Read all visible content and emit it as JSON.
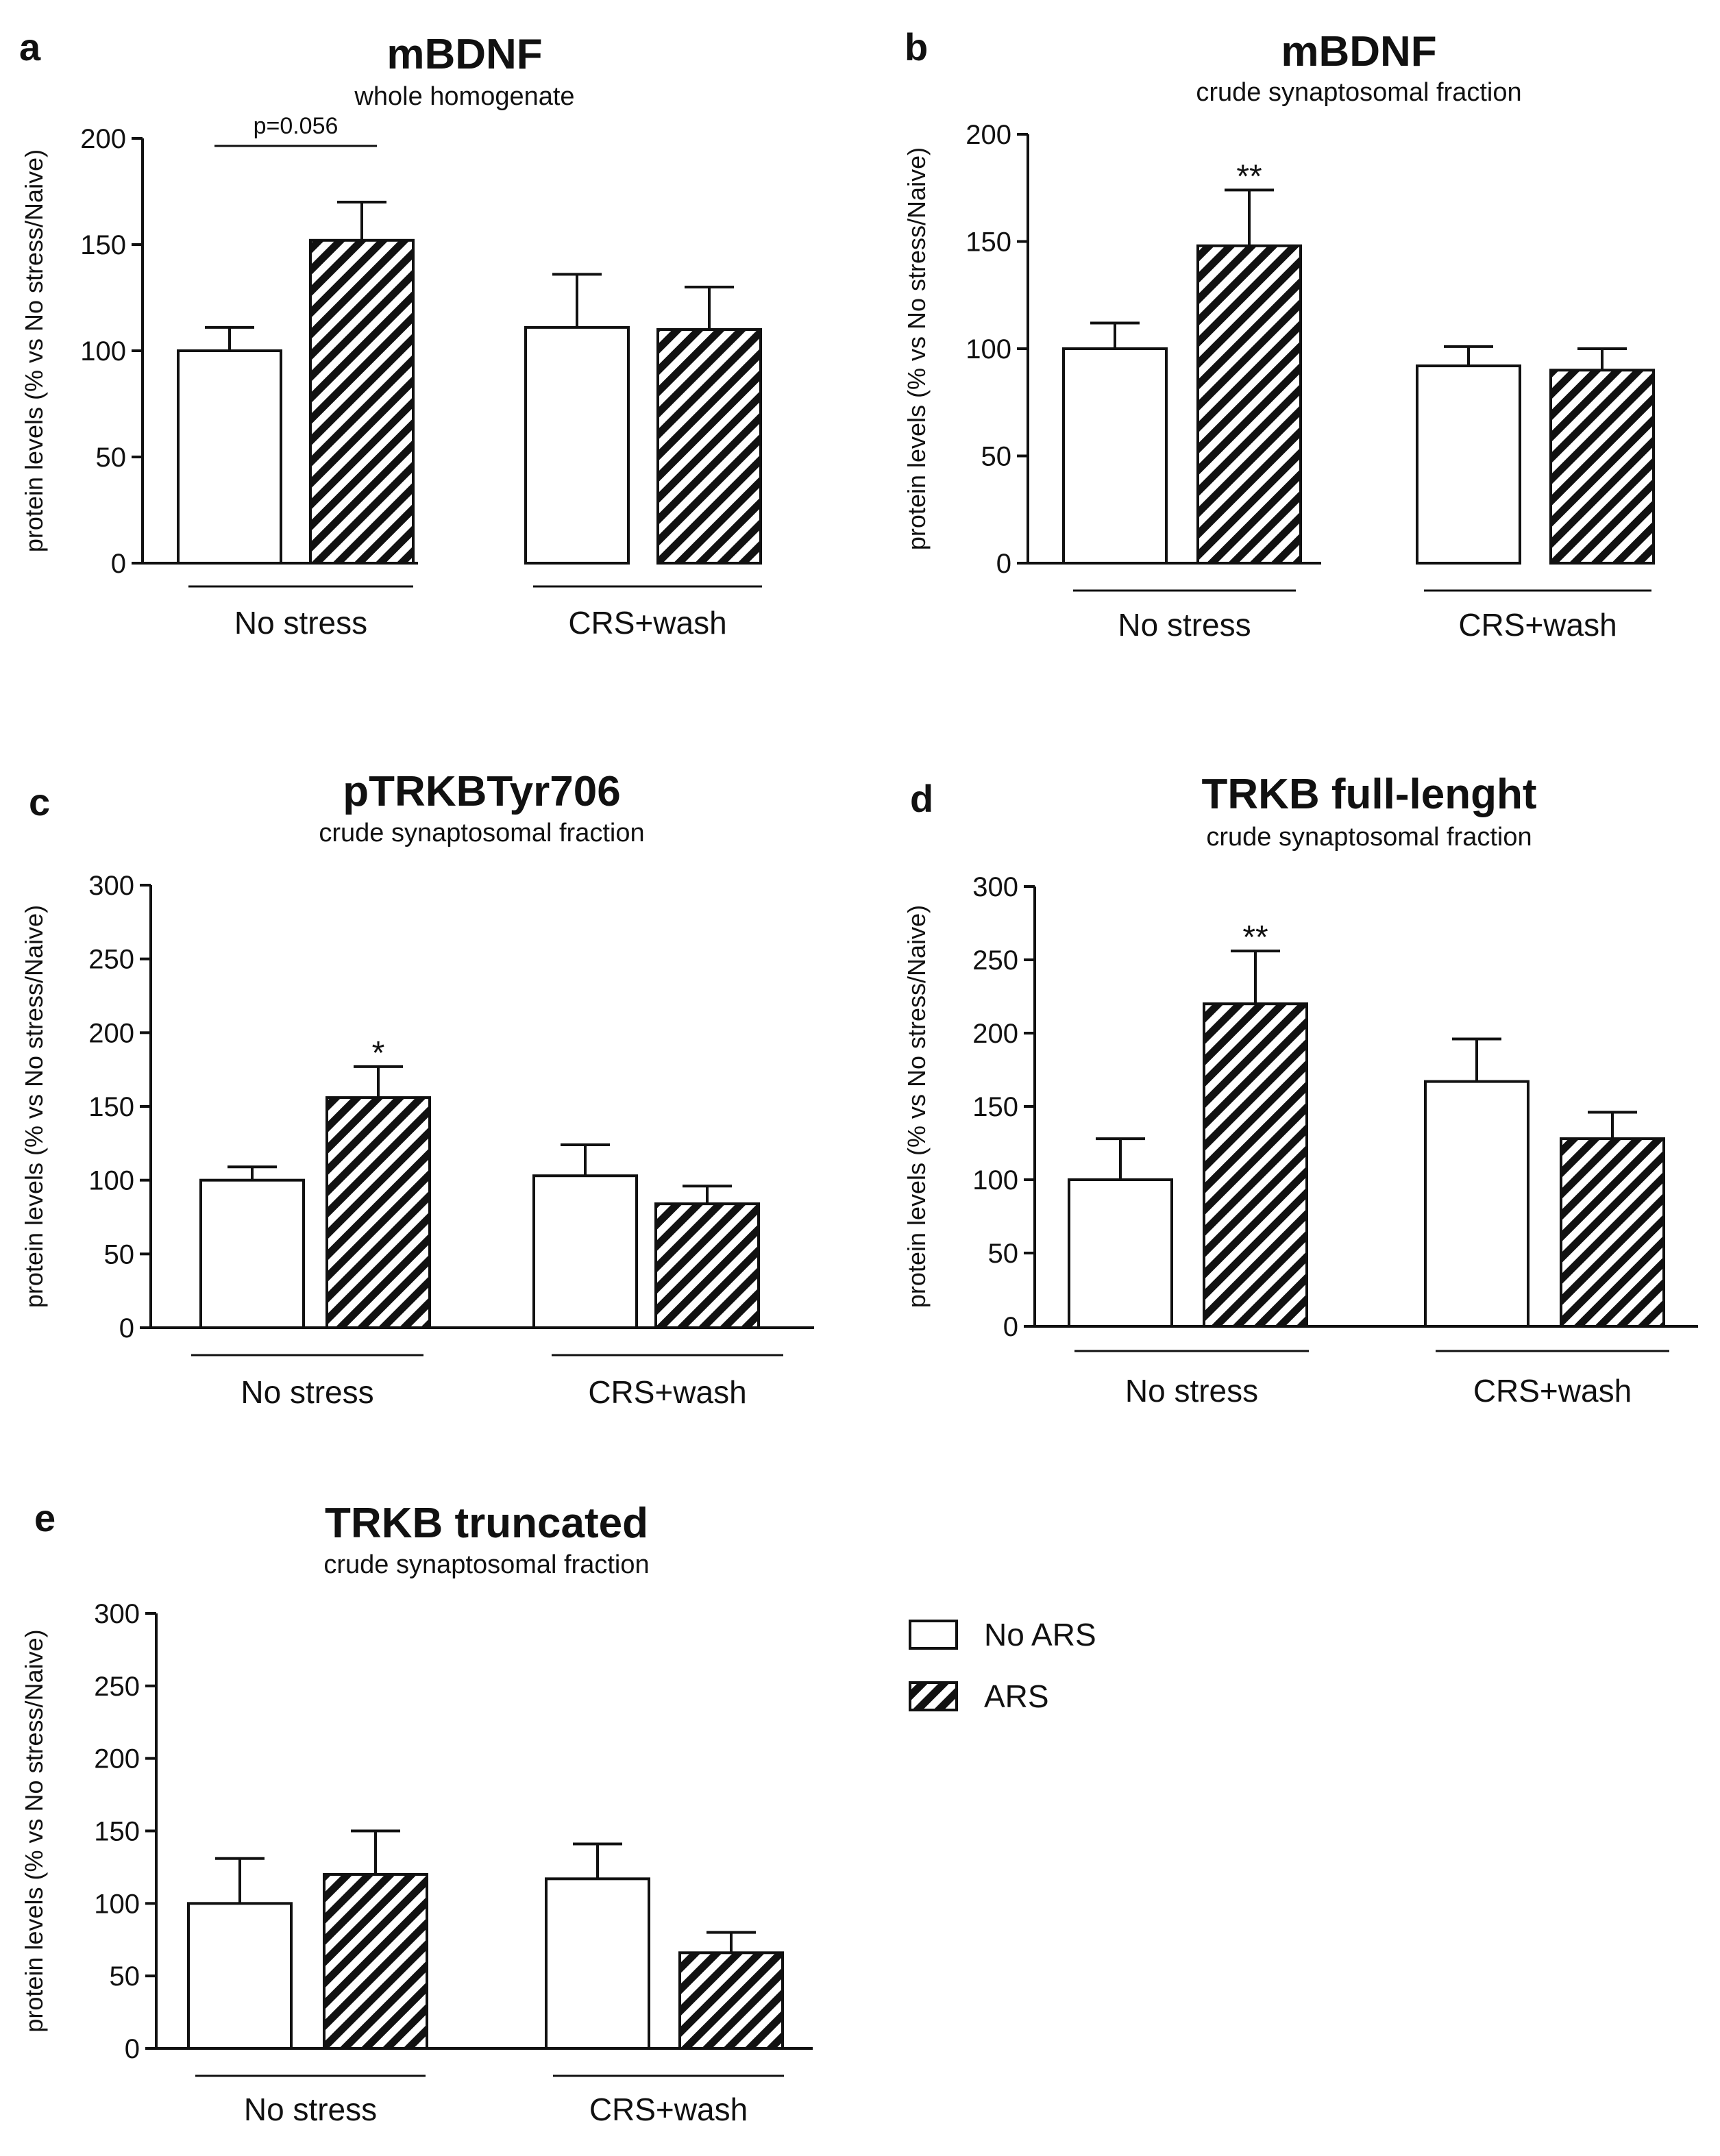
{
  "colors": {
    "ink": "#111111",
    "background": "#ffffff"
  },
  "chart_data": [
    {
      "type": "bar",
      "panel": "a",
      "title": "mBDNF",
      "subtitle": "whole homogenate",
      "ylabel": "protein levels (% vs No stress/Naive)",
      "ylim": [
        0,
        200
      ],
      "yticks": [
        0,
        50,
        100,
        150,
        200
      ],
      "groups": [
        "No stress",
        "CRS+wash"
      ],
      "series": [
        {
          "name": "No ARS",
          "pattern": "open",
          "values": [
            100,
            111
          ],
          "errors": [
            11,
            25
          ]
        },
        {
          "name": "ARS",
          "pattern": "hatched",
          "values": [
            152,
            110
          ],
          "errors": [
            18,
            20
          ]
        }
      ],
      "annotations": [
        {
          "text": "p=0.056",
          "type": "bracket",
          "group": 0
        }
      ]
    },
    {
      "type": "bar",
      "panel": "b",
      "title": "mBDNF",
      "subtitle": "crude synaptosomal fraction",
      "ylabel": "protein levels (% vs No stress/Naive)",
      "ylim": [
        0,
        200
      ],
      "yticks": [
        0,
        50,
        100,
        150,
        200
      ],
      "groups": [
        "No stress",
        "CRS+wash"
      ],
      "series": [
        {
          "name": "No ARS",
          "pattern": "open",
          "values": [
            100,
            92
          ],
          "errors": [
            12,
            9
          ]
        },
        {
          "name": "ARS",
          "pattern": "hatched",
          "values": [
            148,
            90
          ],
          "errors": [
            26,
            10
          ]
        }
      ],
      "annotations": [
        {
          "text": "**",
          "type": "star",
          "group": 0,
          "series": 1
        }
      ]
    },
    {
      "type": "bar",
      "panel": "c",
      "title": "pTRKBTyr706",
      "subtitle": "crude synaptosomal fraction",
      "ylabel": "protein levels (% vs No stress/Naive)",
      "ylim": [
        0,
        300
      ],
      "yticks": [
        0,
        50,
        100,
        150,
        200,
        250,
        300
      ],
      "groups": [
        "No stress",
        "CRS+wash"
      ],
      "series": [
        {
          "name": "No ARS",
          "pattern": "open",
          "values": [
            100,
            103
          ],
          "errors": [
            9,
            21
          ]
        },
        {
          "name": "ARS",
          "pattern": "hatched",
          "values": [
            156,
            84
          ],
          "errors": [
            21,
            12
          ]
        }
      ],
      "annotations": [
        {
          "text": "*",
          "type": "star",
          "group": 0,
          "series": 1
        }
      ]
    },
    {
      "type": "bar",
      "panel": "d",
      "title": "TRKB full-lenght",
      "subtitle": "crude synaptosomal fraction",
      "ylabel": "protein levels (% vs No stress/Naive)",
      "ylim": [
        0,
        300
      ],
      "yticks": [
        0,
        50,
        100,
        150,
        200,
        250,
        300
      ],
      "groups": [
        "No stress",
        "CRS+wash"
      ],
      "series": [
        {
          "name": "No ARS",
          "pattern": "open",
          "values": [
            100,
            167
          ],
          "errors": [
            28,
            29
          ]
        },
        {
          "name": "ARS",
          "pattern": "hatched",
          "values": [
            220,
            128
          ],
          "errors": [
            36,
            18
          ]
        }
      ],
      "annotations": [
        {
          "text": "**",
          "type": "star",
          "group": 0,
          "series": 1
        }
      ]
    },
    {
      "type": "bar",
      "panel": "e",
      "title": "TRKB truncated",
      "subtitle": "crude synaptosomal fraction",
      "ylabel": "protein levels (% vs No stress/Naive)",
      "ylim": [
        0,
        300
      ],
      "yticks": [
        0,
        50,
        100,
        150,
        200,
        250,
        300
      ],
      "groups": [
        "No stress",
        "CRS+wash"
      ],
      "series": [
        {
          "name": "No ARS",
          "pattern": "open",
          "values": [
            100,
            117
          ],
          "errors": [
            31,
            24
          ]
        },
        {
          "name": "ARS",
          "pattern": "hatched",
          "values": [
            120,
            66
          ],
          "errors": [
            30,
            14
          ]
        }
      ],
      "annotations": []
    }
  ],
  "legend": [
    {
      "label": "No ARS",
      "pattern": "open"
    },
    {
      "label": "ARS",
      "pattern": "hatched"
    }
  ]
}
